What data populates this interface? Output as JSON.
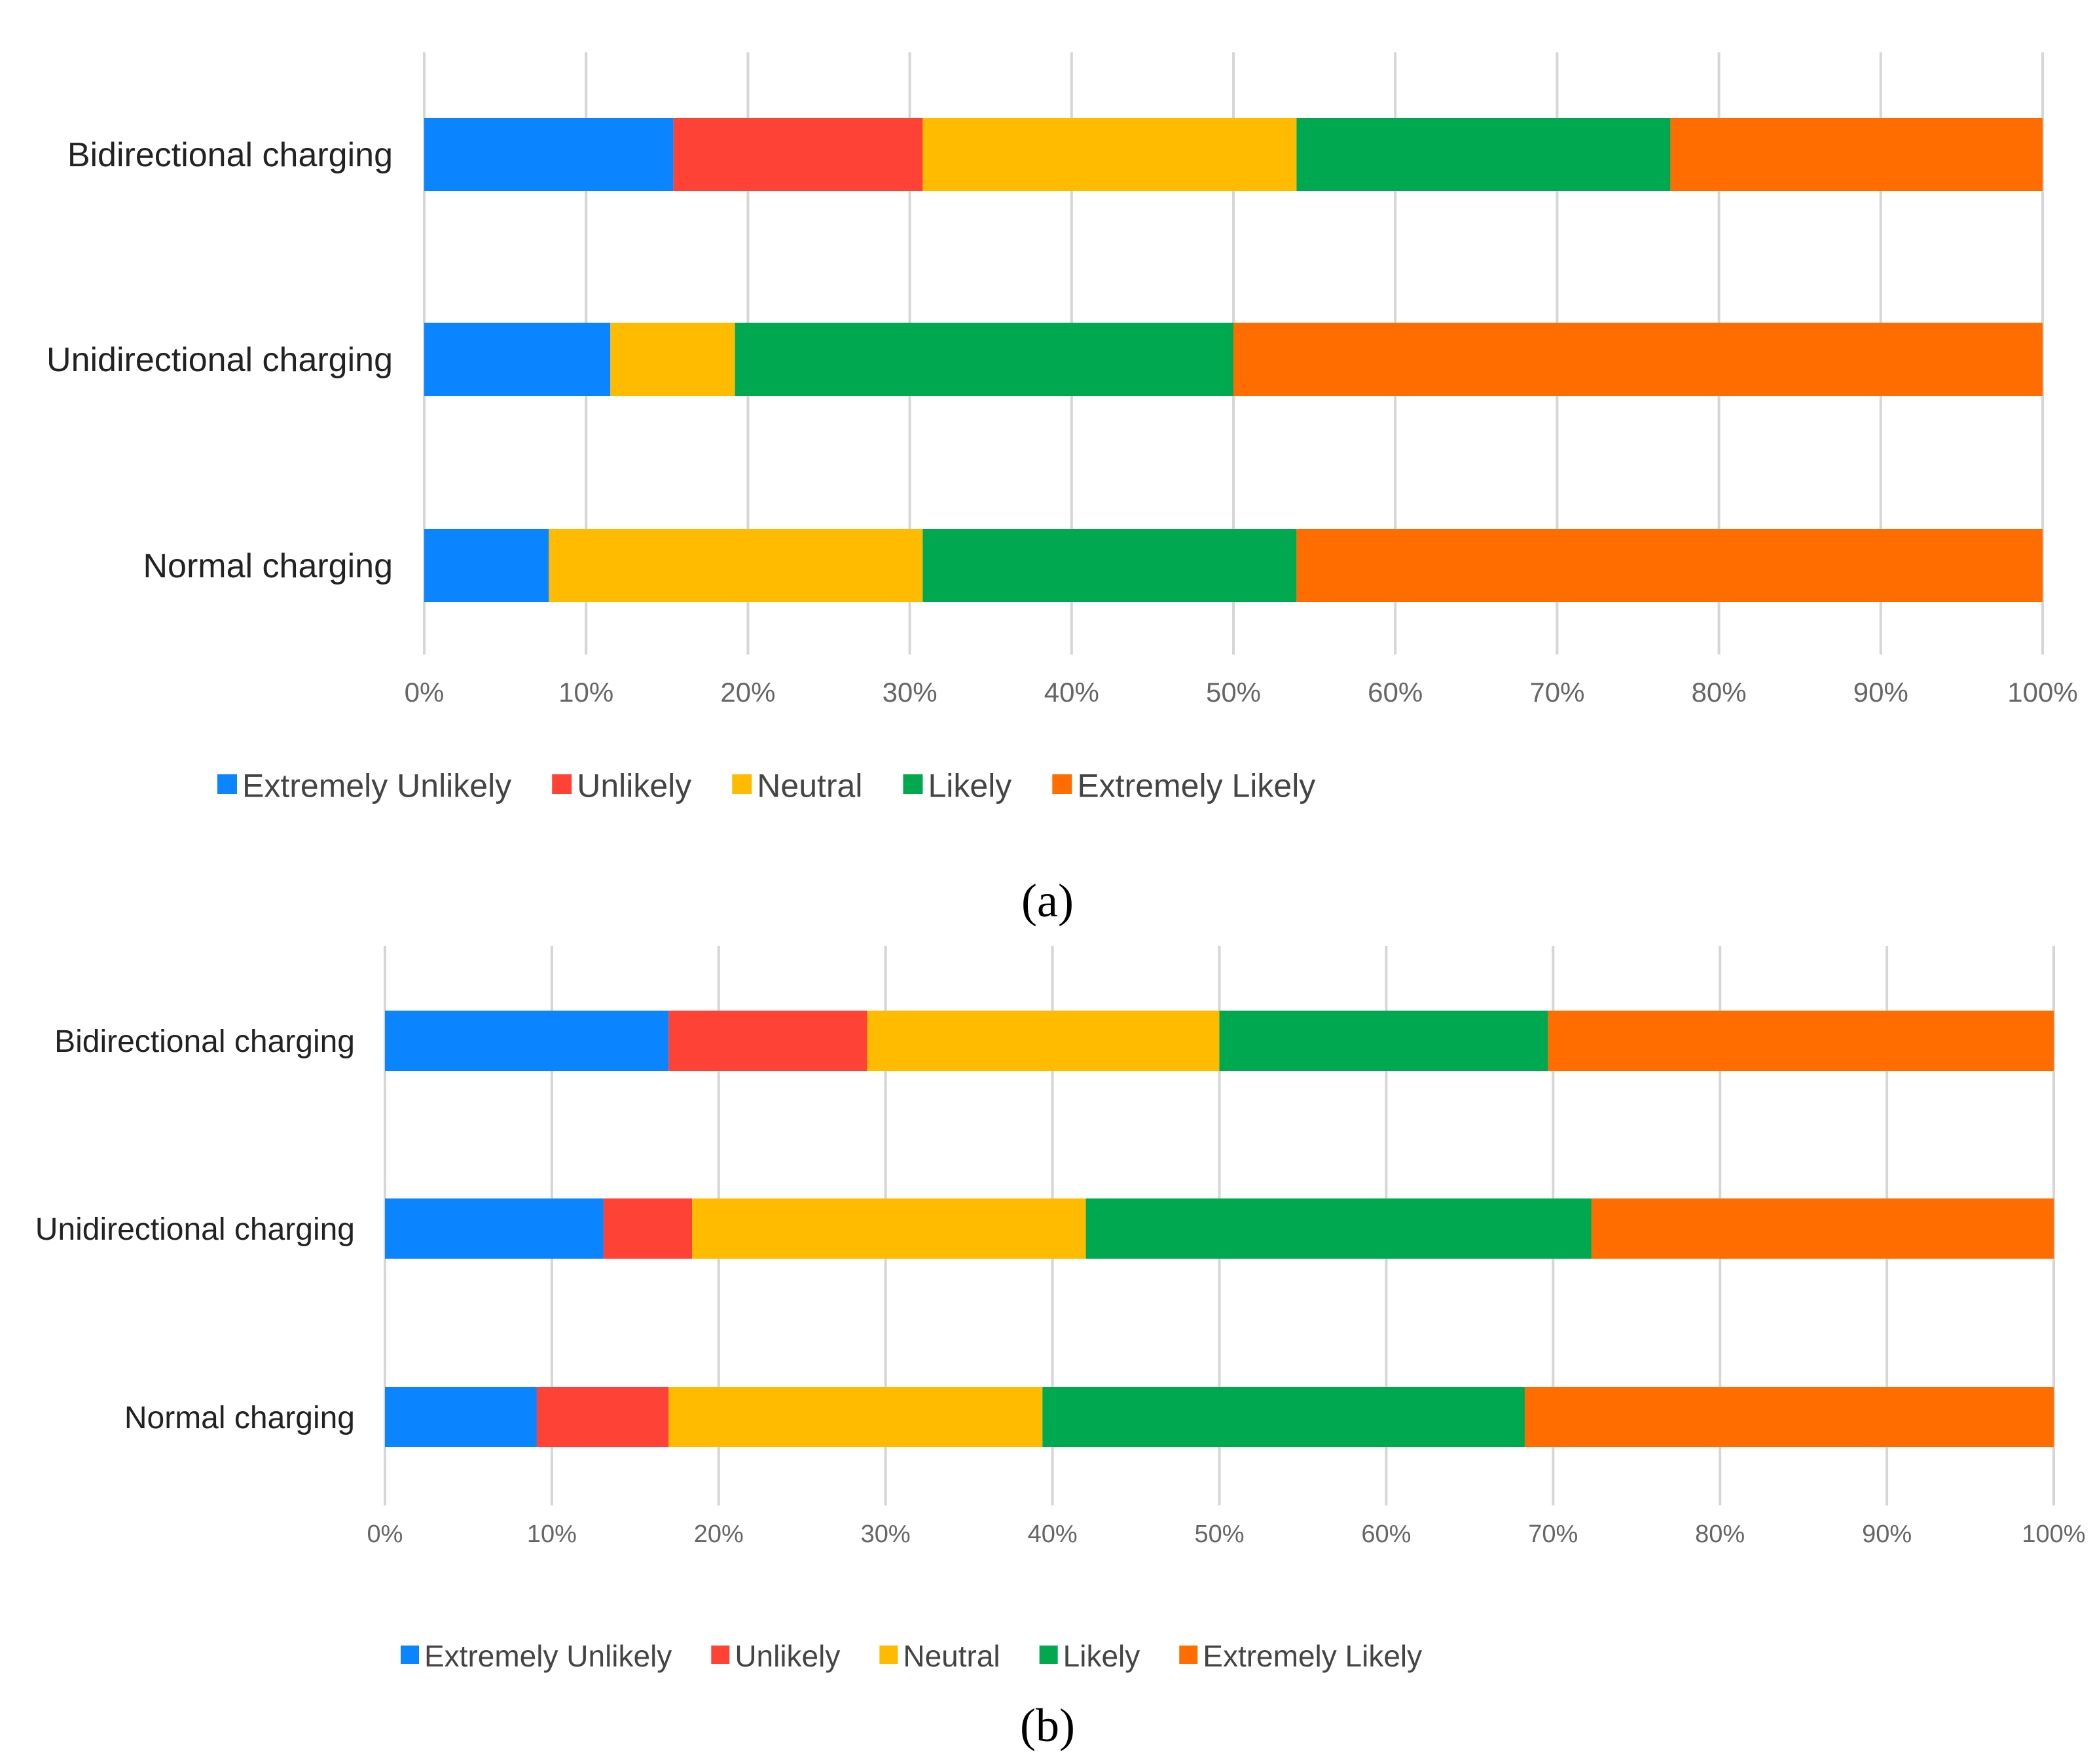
{
  "chart_data": [
    {
      "type": "bar",
      "stacked": true,
      "orientation": "horizontal",
      "caption": "(a)",
      "categories": [
        "Bidirectional charging",
        "Unidirectional charging",
        "Normal charging"
      ],
      "series": [
        {
          "name": "Extremely Unlikely",
          "color": "#0a84ff",
          "values": [
            15.4,
            11.5,
            7.7
          ]
        },
        {
          "name": "Unlikely",
          "color": "#ff4136",
          "values": [
            15.4,
            0,
            0
          ]
        },
        {
          "name": "Neutral",
          "color": "#ffbb00",
          "values": [
            23.1,
            7.7,
            23.1
          ]
        },
        {
          "name": "Likely",
          "color": "#00a94f",
          "values": [
            23.1,
            30.8,
            23.1
          ]
        },
        {
          "name": "Extremely Likely",
          "color": "#ff6d00",
          "values": [
            23.0,
            50.0,
            46.1
          ]
        }
      ],
      "xlim": [
        0,
        100
      ],
      "xticks": [
        "0%",
        "10%",
        "20%",
        "30%",
        "40%",
        "50%",
        "60%",
        "70%",
        "80%",
        "90%",
        "100%"
      ],
      "grid": true,
      "legend_position": "bottom"
    },
    {
      "type": "bar",
      "stacked": true,
      "orientation": "horizontal",
      "caption": "(b)",
      "categories": [
        "Bidirectional charging",
        "Unidirectional charging",
        "Normal charging"
      ],
      "series": [
        {
          "name": "Extremely Unlikely",
          "color": "#0a84ff",
          "values": [
            17.0,
            13.1,
            9.1
          ]
        },
        {
          "name": "Unlikely",
          "color": "#ff4136",
          "values": [
            11.9,
            5.3,
            7.9
          ]
        },
        {
          "name": "Neutral",
          "color": "#ffbb00",
          "values": [
            21.1,
            23.6,
            22.4
          ]
        },
        {
          "name": "Likely",
          "color": "#00a94f",
          "values": [
            19.7,
            30.3,
            28.9
          ]
        },
        {
          "name": "Extremely Likely",
          "color": "#ff6d00",
          "values": [
            30.3,
            27.7,
            31.7
          ]
        }
      ],
      "xlim": [
        0,
        100
      ],
      "xticks": [
        "0%",
        "10%",
        "20%",
        "30%",
        "40%",
        "50%",
        "60%",
        "70%",
        "80%",
        "90%",
        "100%"
      ],
      "grid": true,
      "legend_position": "bottom"
    }
  ]
}
